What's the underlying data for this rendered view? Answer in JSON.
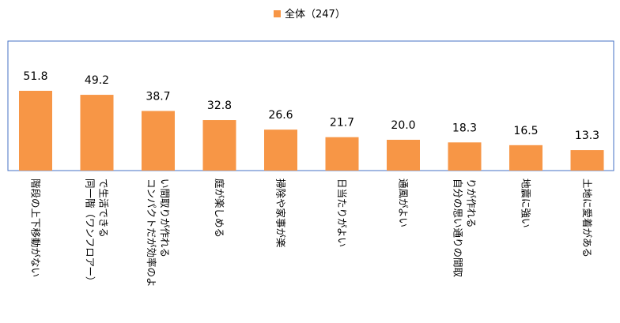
{
  "chart_data": {
    "type": "bar",
    "title": "",
    "legend": {
      "label": "全体（247）",
      "placement": "top-center"
    },
    "series": [
      {
        "name": "全体（247）",
        "color": "#F79646",
        "values": [
          51.8,
          49.2,
          38.7,
          32.8,
          26.6,
          21.7,
          20.0,
          18.3,
          16.5,
          13.3
        ]
      }
    ],
    "categories": [
      "階段の上下移動がない",
      "同一階（ワンフロアー）で生活できる",
      "コンパクトだが効率のよい間取りが作れる",
      "庭が楽しめる",
      "掃除や家事が楽",
      "日当たりがよい",
      "通風がよい",
      "自分の思い通りの間取りが作れる",
      "地震に強い",
      "土地に愛着がある"
    ],
    "category_lines": [
      [
        "階段の上下移動がない"
      ],
      [
        "同一階（ワンフロアー）",
        "で生活できる"
      ],
      [
        "コンパクトだが効率のよ",
        "い間取りが作れる"
      ],
      [
        "庭が楽しめる"
      ],
      [
        "掃除や家事が楽"
      ],
      [
        "日当たりがよい"
      ],
      [
        "通風がよい"
      ],
      [
        "自分の思い通りの間取",
        "りが作れる"
      ],
      [
        "地震に強い"
      ],
      [
        "土地に愛着がある"
      ]
    ],
    "value_labels": [
      "51.8",
      "49.2",
      "38.7",
      "32.8",
      "26.6",
      "21.7",
      "20.0",
      "18.3",
      "16.5",
      "13.3"
    ],
    "ylim": [
      0,
      80
    ],
    "grid": false,
    "frame_color": "#4472C4"
  }
}
